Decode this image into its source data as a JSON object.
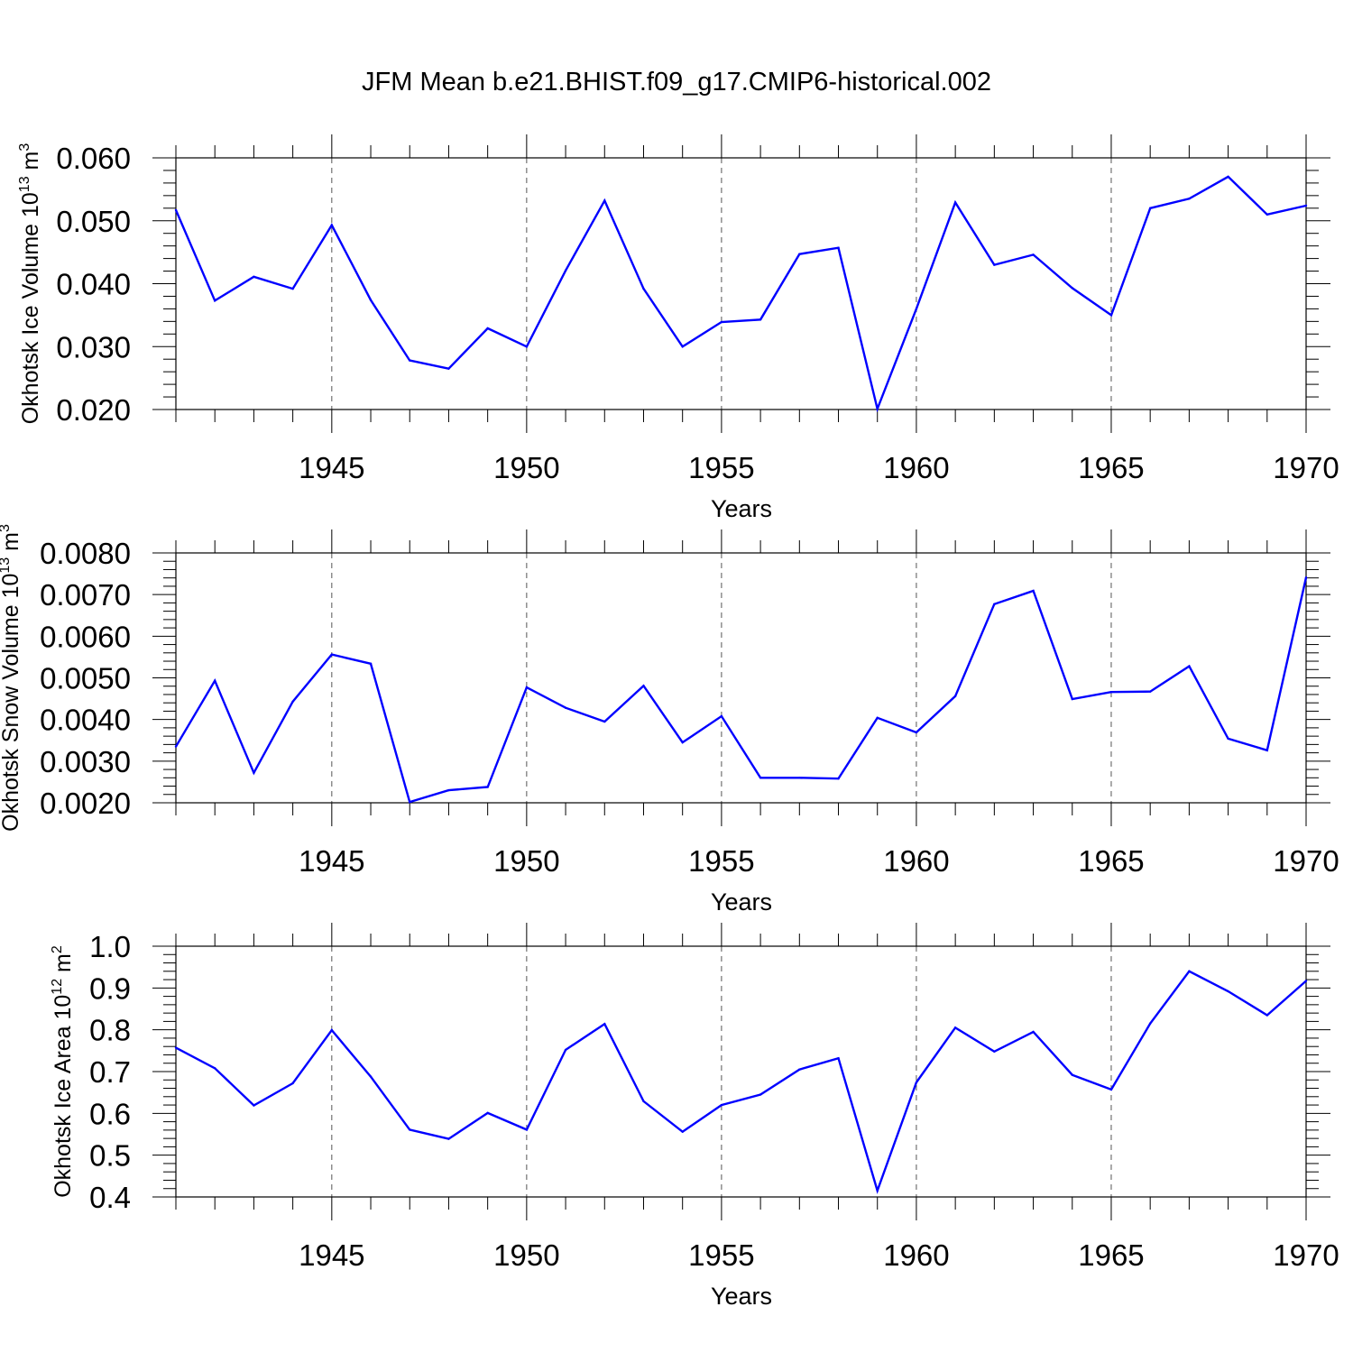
{
  "figure": {
    "title": "JFM Mean b.e21.BHIST.f09_g17.CMIP6-historical.002"
  },
  "chart_data": [
    {
      "type": "line",
      "panel": "ice-volume",
      "ylabel": "Okhotsk Ice Volume 10",
      "ylabel_exp": "13",
      "ylabel_unit": " m",
      "ylabel_unit_exp": "3",
      "xlabel": "Years",
      "xlim": [
        1941,
        1970
      ],
      "ylim": [
        0.02,
        0.06
      ],
      "yticks": [
        0.02,
        0.03,
        0.04,
        0.05,
        0.06
      ],
      "ytick_labels": [
        "0.020",
        "0.030",
        "0.040",
        "0.050",
        "0.060"
      ],
      "xticks": [
        1945,
        1950,
        1955,
        1960,
        1965,
        1970
      ],
      "xtick_labels": [
        "1945",
        "1950",
        "1955",
        "1960",
        "1965",
        "1970"
      ],
      "grid": "vertical-dashed",
      "series": [
        {
          "name": "ice volume",
          "color": "#0000ff",
          "x": [
            1941,
            1942,
            1943,
            1944,
            1945,
            1946,
            1947,
            1948,
            1949,
            1950,
            1951,
            1952,
            1953,
            1954,
            1955,
            1956,
            1957,
            1958,
            1959,
            1960,
            1961,
            1962,
            1963,
            1964,
            1965,
            1966,
            1967,
            1968,
            1969,
            1970
          ],
          "values": [
            0.0517,
            0.0373,
            0.0411,
            0.0392,
            0.0493,
            0.0374,
            0.0278,
            0.0265,
            0.0329,
            0.03,
            0.0421,
            0.0532,
            0.0392,
            0.03,
            0.0339,
            0.0343,
            0.0447,
            0.0457,
            0.0201,
            0.036,
            0.0529,
            0.043,
            0.0446,
            0.0393,
            0.035,
            0.052,
            0.0535,
            0.057,
            0.051,
            0.0524
          ]
        }
      ]
    },
    {
      "type": "line",
      "panel": "snow-volume",
      "ylabel": "Okhotsk Snow Volume 10",
      "ylabel_exp": "13",
      "ylabel_unit": " m",
      "ylabel_unit_exp": "3",
      "xlabel": "Years",
      "xlim": [
        1941,
        1970
      ],
      "ylim": [
        0.002,
        0.008
      ],
      "yticks": [
        0.002,
        0.003,
        0.004,
        0.005,
        0.006,
        0.007,
        0.008
      ],
      "ytick_labels": [
        "0.0020",
        "0.0030",
        "0.0040",
        "0.0050",
        "0.0060",
        "0.0070",
        "0.0080"
      ],
      "xticks": [
        1945,
        1950,
        1955,
        1960,
        1965,
        1970
      ],
      "xtick_labels": [
        "1945",
        "1950",
        "1955",
        "1960",
        "1965",
        "1970"
      ],
      "grid": "vertical-dashed",
      "series": [
        {
          "name": "snow volume",
          "color": "#0000ff",
          "x": [
            1941,
            1942,
            1943,
            1944,
            1945,
            1946,
            1947,
            1948,
            1949,
            1950,
            1951,
            1952,
            1953,
            1954,
            1955,
            1956,
            1957,
            1958,
            1959,
            1960,
            1961,
            1962,
            1963,
            1964,
            1965,
            1966,
            1967,
            1968,
            1969,
            1970
          ],
          "values": [
            0.00335,
            0.00493,
            0.00272,
            0.00443,
            0.00556,
            0.00534,
            0.00202,
            0.0023,
            0.00238,
            0.00477,
            0.00428,
            0.00395,
            0.00481,
            0.00345,
            0.00408,
            0.0026,
            0.0026,
            0.00258,
            0.00404,
            0.00369,
            0.00456,
            0.00677,
            0.00709,
            0.00449,
            0.00466,
            0.00467,
            0.00528,
            0.00354,
            0.00326,
            0.00741
          ]
        }
      ]
    },
    {
      "type": "line",
      "panel": "ice-area",
      "ylabel": "Okhotsk Ice Area 10",
      "ylabel_exp": "12",
      "ylabel_unit": " m",
      "ylabel_unit_exp": "2",
      "xlabel": "Years",
      "xlim": [
        1941,
        1970
      ],
      "ylim": [
        0.4,
        1.0
      ],
      "yticks": [
        0.4,
        0.5,
        0.6,
        0.7,
        0.8,
        0.9,
        1.0
      ],
      "ytick_labels": [
        "0.4",
        "0.5",
        "0.6",
        "0.7",
        "0.8",
        "0.9",
        "1.0"
      ],
      "xticks": [
        1945,
        1950,
        1955,
        1960,
        1965,
        1970
      ],
      "xtick_labels": [
        "1945",
        "1950",
        "1955",
        "1960",
        "1965",
        "1970"
      ],
      "grid": "vertical-dashed",
      "series": [
        {
          "name": "ice area",
          "color": "#0000ff",
          "x": [
            1941,
            1942,
            1943,
            1944,
            1945,
            1946,
            1947,
            1948,
            1949,
            1950,
            1951,
            1952,
            1953,
            1954,
            1955,
            1956,
            1957,
            1958,
            1959,
            1960,
            1961,
            1962,
            1963,
            1964,
            1965,
            1966,
            1967,
            1968,
            1969,
            1970
          ],
          "values": [
            0.757,
            0.708,
            0.619,
            0.672,
            0.799,
            0.688,
            0.561,
            0.539,
            0.601,
            0.561,
            0.752,
            0.814,
            0.629,
            0.556,
            0.62,
            0.645,
            0.705,
            0.732,
            0.415,
            0.674,
            0.805,
            0.748,
            0.795,
            0.692,
            0.657,
            0.815,
            0.94,
            0.892,
            0.835,
            0.917
          ]
        }
      ]
    }
  ]
}
